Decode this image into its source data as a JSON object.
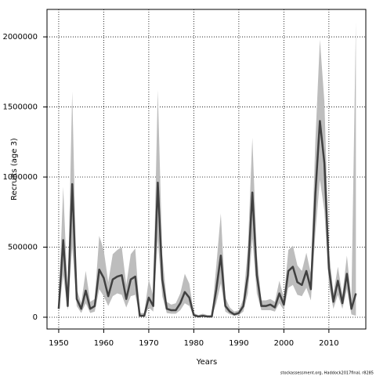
{
  "chart_data": {
    "type": "line",
    "x_label": "Years",
    "y_label": "Recruits (age 3)",
    "footnote": "stockassessment.org, Haddock2017final, r8285",
    "x": [
      1950,
      1951,
      1952,
      1953,
      1954,
      1955,
      1956,
      1957,
      1958,
      1959,
      1960,
      1961,
      1962,
      1963,
      1964,
      1965,
      1966,
      1967,
      1968,
      1969,
      1970,
      1971,
      1972,
      1973,
      1974,
      1975,
      1976,
      1977,
      1978,
      1979,
      1980,
      1981,
      1982,
      1983,
      1984,
      1985,
      1986,
      1987,
      1988,
      1989,
      1990,
      1991,
      1992,
      1993,
      1994,
      1995,
      1996,
      1997,
      1998,
      1999,
      2000,
      2001,
      2002,
      2003,
      2004,
      2005,
      2006,
      2007,
      2008,
      2009,
      2010,
      2011,
      2012,
      2013,
      2014,
      2015,
      2016
    ],
    "series": [
      {
        "color": "#404040",
        "band_color": "#bdbdbd",
        "values": [
          60000,
          550000,
          80000,
          950000,
          130000,
          60000,
          190000,
          60000,
          80000,
          340000,
          280000,
          150000,
          270000,
          290000,
          300000,
          130000,
          270000,
          290000,
          10000,
          10000,
          140000,
          80000,
          960000,
          270000,
          60000,
          50000,
          50000,
          100000,
          180000,
          140000,
          15000,
          5000,
          10000,
          5000,
          5000,
          200000,
          440000,
          80000,
          40000,
          20000,
          30000,
          80000,
          300000,
          890000,
          300000,
          80000,
          80000,
          90000,
          70000,
          170000,
          90000,
          330000,
          360000,
          250000,
          230000,
          330000,
          200000,
          880000,
          1400000,
          1100000,
          350000,
          110000,
          260000,
          100000,
          310000,
          60000,
          170000
        ],
        "upper": [
          100000,
          930000,
          150000,
          1610000,
          200000,
          100000,
          330000,
          110000,
          130000,
          580000,
          480000,
          250000,
          450000,
          480000,
          500000,
          230000,
          450000,
          490000,
          30000,
          30000,
          270000,
          150000,
          1620000,
          450000,
          110000,
          90000,
          100000,
          170000,
          310000,
          240000,
          30000,
          15000,
          25000,
          15000,
          15000,
          370000,
          740000,
          140000,
          70000,
          40000,
          50000,
          130000,
          490000,
          1280000,
          450000,
          120000,
          120000,
          130000,
          110000,
          260000,
          140000,
          480000,
          510000,
          370000,
          330000,
          460000,
          310000,
          1260000,
          1980000,
          1540000,
          480000,
          170000,
          360000,
          160000,
          440000,
          120000,
          2110000
        ],
        "lower": [
          40000,
          300000,
          50000,
          500000,
          80000,
          30000,
          100000,
          30000,
          40000,
          200000,
          150000,
          80000,
          150000,
          170000,
          160000,
          70000,
          150000,
          160000,
          5000,
          5000,
          70000,
          40000,
          550000,
          150000,
          30000,
          25000,
          25000,
          50000,
          100000,
          80000,
          5000,
          2000,
          5000,
          2000,
          2000,
          100000,
          240000,
          40000,
          20000,
          10000,
          15000,
          40000,
          170000,
          560000,
          170000,
          50000,
          50000,
          50000,
          40000,
          100000,
          50000,
          210000,
          230000,
          160000,
          150000,
          210000,
          120000,
          600000,
          980000,
          760000,
          230000,
          60000,
          160000,
          60000,
          200000,
          20000,
          10000
        ]
      }
    ],
    "xlim": [
      1947.4,
      2018.2
    ],
    "ylim": [
      -84000,
      2196000
    ],
    "xticks": [
      1950,
      1960,
      1970,
      1980,
      1990,
      2000,
      2010
    ],
    "yticks": [
      0,
      500000,
      1000000,
      1500000,
      2000000
    ],
    "grid": true
  }
}
